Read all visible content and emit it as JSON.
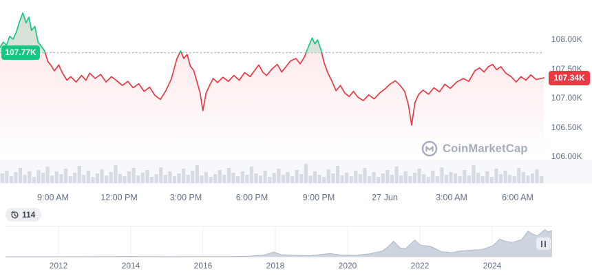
{
  "watermark": {
    "text": "CoinMarketCap"
  },
  "badges": {
    "open_label": "107.77K",
    "current_label": "107.34K"
  },
  "history_pill": {
    "count": "114"
  },
  "colors": {
    "green": "#16c784",
    "red": "#ea3943",
    "axis_text": "#616e85",
    "badge_open_bg": "#16c784",
    "badge_current_bg": "#ea3943",
    "volume_bar": "#d6dae2",
    "minimap_fill": "#ced4df",
    "minimap_edge": "#aeb6c4",
    "baseline_dotted": "#a9b0bd",
    "watermark": "#a5acbe",
    "green_fill_opacity": 0.16,
    "pink_fill_opacity": 0.14
  },
  "chart_data": [
    {
      "id": "price-24h",
      "type": "line",
      "unit": "thousand USD",
      "baseline_price": 107.77,
      "baseline_label": "107.77K",
      "last_price": 107.34,
      "last_label": "107.34K",
      "ylim": [
        105.95,
        108.6
      ],
      "grid": "baseline-dotted-only",
      "legend": "none",
      "y_ticks": [
        {
          "label": "108.00K",
          "value": 108.0
        },
        {
          "label": "107.50K",
          "value": 107.5
        },
        {
          "label": "107.00K",
          "value": 107.0
        },
        {
          "label": "106.50K",
          "value": 106.5
        },
        {
          "label": "106.00K",
          "value": 106.0
        }
      ],
      "x_ticks": [
        {
          "label": "9:00 AM",
          "t": 0.0975
        },
        {
          "label": "12:00 PM",
          "t": 0.2196
        },
        {
          "label": "3:00 PM",
          "t": 0.3418
        },
        {
          "label": "6:00 PM",
          "t": 0.4639
        },
        {
          "label": "9:00 PM",
          "t": 0.5861
        },
        {
          "label": "27 Jun",
          "t": 0.7082
        },
        {
          "label": "3:00 AM",
          "t": 0.8304
        },
        {
          "label": "6:00 AM",
          "t": 0.9525
        }
      ],
      "series": [
        {
          "name": "price",
          "points": [
            [
              0.0,
              107.86
            ],
            [
              0.006,
              107.95
            ],
            [
              0.012,
              107.9
            ],
            [
              0.018,
              108.05
            ],
            [
              0.024,
              108.0
            ],
            [
              0.03,
              108.12
            ],
            [
              0.036,
              108.3
            ],
            [
              0.042,
              108.45
            ],
            [
              0.048,
              108.28
            ],
            [
              0.053,
              108.38
            ],
            [
              0.058,
              108.15
            ],
            [
              0.064,
              108.22
            ],
            [
              0.07,
              107.95
            ],
            [
              0.076,
              107.88
            ],
            [
              0.082,
              107.8
            ],
            [
              0.088,
              107.62
            ],
            [
              0.094,
              107.55
            ],
            [
              0.1,
              107.46
            ],
            [
              0.108,
              107.56
            ],
            [
              0.115,
              107.42
            ],
            [
              0.123,
              107.3
            ],
            [
              0.13,
              107.36
            ],
            [
              0.14,
              107.27
            ],
            [
              0.15,
              107.38
            ],
            [
              0.158,
              107.3
            ],
            [
              0.165,
              107.42
            ],
            [
              0.175,
              107.33
            ],
            [
              0.185,
              107.4
            ],
            [
              0.195,
              107.27
            ],
            [
              0.205,
              107.36
            ],
            [
              0.215,
              107.29
            ],
            [
              0.225,
              107.21
            ],
            [
              0.235,
              107.28
            ],
            [
              0.245,
              107.17
            ],
            [
              0.255,
              107.24
            ],
            [
              0.265,
              107.11
            ],
            [
              0.275,
              107.18
            ],
            [
              0.285,
              107.04
            ],
            [
              0.295,
              106.97
            ],
            [
              0.305,
              107.12
            ],
            [
              0.315,
              107.32
            ],
            [
              0.325,
              107.66
            ],
            [
              0.332,
              107.8
            ],
            [
              0.338,
              107.67
            ],
            [
              0.344,
              107.74
            ],
            [
              0.35,
              107.54
            ],
            [
              0.356,
              107.47
            ],
            [
              0.362,
              107.28
            ],
            [
              0.368,
              107.08
            ],
            [
              0.373,
              106.78
            ],
            [
              0.379,
              107.08
            ],
            [
              0.386,
              107.22
            ],
            [
              0.392,
              107.33
            ],
            [
              0.4,
              107.26
            ],
            [
              0.41,
              107.35
            ],
            [
              0.42,
              107.28
            ],
            [
              0.43,
              107.38
            ],
            [
              0.44,
              107.3
            ],
            [
              0.45,
              107.43
            ],
            [
              0.46,
              107.36
            ],
            [
              0.47,
              107.49
            ],
            [
              0.476,
              107.56
            ],
            [
              0.483,
              107.44
            ],
            [
              0.49,
              107.38
            ],
            [
              0.5,
              107.49
            ],
            [
              0.51,
              107.57
            ],
            [
              0.518,
              107.44
            ],
            [
              0.526,
              107.53
            ],
            [
              0.534,
              107.63
            ],
            [
              0.544,
              107.67
            ],
            [
              0.552,
              107.58
            ],
            [
              0.56,
              107.7
            ],
            [
              0.568,
              107.89
            ],
            [
              0.574,
              108.02
            ],
            [
              0.579,
              107.92
            ],
            [
              0.584,
              107.99
            ],
            [
              0.59,
              107.83
            ],
            [
              0.596,
              107.6
            ],
            [
              0.603,
              107.42
            ],
            [
              0.61,
              107.29
            ],
            [
              0.618,
              107.12
            ],
            [
              0.626,
              107.21
            ],
            [
              0.634,
              107.08
            ],
            [
              0.642,
              107.02
            ],
            [
              0.65,
              107.11
            ],
            [
              0.658,
              107.01
            ],
            [
              0.668,
              106.95
            ],
            [
              0.678,
              107.05
            ],
            [
              0.688,
              106.98
            ],
            [
              0.698,
              107.08
            ],
            [
              0.708,
              107.15
            ],
            [
              0.717,
              107.23
            ],
            [
              0.727,
              107.29
            ],
            [
              0.736,
              107.21
            ],
            [
              0.744,
              107.11
            ],
            [
              0.751,
              106.88
            ],
            [
              0.757,
              106.53
            ],
            [
              0.763,
              106.92
            ],
            [
              0.77,
              107.06
            ],
            [
              0.778,
              107.13
            ],
            [
              0.788,
              107.06
            ],
            [
              0.798,
              107.17
            ],
            [
              0.808,
              107.1
            ],
            [
              0.818,
              107.23
            ],
            [
              0.828,
              107.16
            ],
            [
              0.84,
              107.27
            ],
            [
              0.852,
              107.33
            ],
            [
              0.862,
              107.28
            ],
            [
              0.873,
              107.46
            ],
            [
              0.882,
              107.51
            ],
            [
              0.89,
              107.44
            ],
            [
              0.898,
              107.53
            ],
            [
              0.906,
              107.57
            ],
            [
              0.913,
              107.48
            ],
            [
              0.921,
              107.53
            ],
            [
              0.93,
              107.42
            ],
            [
              0.94,
              107.36
            ],
            [
              0.949,
              107.27
            ],
            [
              0.958,
              107.36
            ],
            [
              0.967,
              107.3
            ],
            [
              0.976,
              107.39
            ],
            [
              0.986,
              107.31
            ],
            [
              1.0,
              107.34
            ]
          ]
        }
      ],
      "volume": [
        14,
        18,
        10,
        16,
        22,
        12,
        17,
        9,
        19,
        15,
        24,
        11,
        17,
        13,
        21,
        10,
        15,
        25,
        12,
        18,
        9,
        14,
        20,
        11,
        16,
        26,
        13,
        10,
        17,
        22,
        11,
        15,
        19,
        9,
        13,
        23,
        12,
        17,
        10,
        14,
        21,
        12,
        18,
        26,
        11,
        16,
        9,
        13,
        19,
        12,
        22,
        15,
        10,
        17,
        12,
        24,
        14,
        11,
        18,
        9,
        15,
        21,
        12,
        16,
        10,
        19,
        13,
        28,
        11,
        17,
        12,
        9,
        20,
        14,
        25,
        11,
        15,
        10,
        18,
        13,
        22,
        10,
        16,
        9,
        14,
        19,
        12,
        24,
        11,
        17,
        10,
        15,
        21,
        13,
        9,
        18,
        10,
        23,
        12,
        16,
        14,
        10,
        19,
        11,
        26,
        15,
        10,
        17,
        9,
        21,
        13,
        18,
        12,
        10,
        22,
        16,
        11,
        14,
        20,
        10
      ]
    },
    {
      "id": "history-minimap",
      "type": "area",
      "unit": "thousand USD",
      "ylim": [
        0,
        115
      ],
      "x_ticks": [
        {
          "label": "2012",
          "t": 0.097
        },
        {
          "label": "2014",
          "t": 0.229
        },
        {
          "label": "2016",
          "t": 0.361
        },
        {
          "label": "2018",
          "t": 0.494
        },
        {
          "label": "2020",
          "t": 0.626
        },
        {
          "label": "2022",
          "t": 0.758
        },
        {
          "label": "2024",
          "t": 0.89
        }
      ],
      "points": [
        [
          0.0,
          0.02
        ],
        [
          0.031,
          0.05
        ],
        [
          0.097,
          0.1
        ],
        [
          0.163,
          0.15
        ],
        [
          0.226,
          1.0
        ],
        [
          0.249,
          0.5
        ],
        [
          0.296,
          0.3
        ],
        [
          0.362,
          0.45
        ],
        [
          0.415,
          0.9
        ],
        [
          0.448,
          2.5
        ],
        [
          0.474,
          7
        ],
        [
          0.491,
          19
        ],
        [
          0.504,
          8.5
        ],
        [
          0.527,
          6.5
        ],
        [
          0.557,
          3.8
        ],
        [
          0.593,
          13
        ],
        [
          0.613,
          7.3
        ],
        [
          0.64,
          6
        ],
        [
          0.666,
          11.5
        ],
        [
          0.689,
          23
        ],
        [
          0.7,
          40
        ],
        [
          0.71,
          63
        ],
        [
          0.722,
          36
        ],
        [
          0.732,
          33
        ],
        [
          0.749,
          68
        ],
        [
          0.759,
          47
        ],
        [
          0.778,
          42
        ],
        [
          0.798,
          20
        ],
        [
          0.818,
          16.5
        ],
        [
          0.831,
          23
        ],
        [
          0.851,
          27
        ],
        [
          0.871,
          29
        ],
        [
          0.891,
          44
        ],
        [
          0.904,
          72
        ],
        [
          0.914,
          63
        ],
        [
          0.927,
          58
        ],
        [
          0.944,
          69
        ],
        [
          0.956,
          104
        ],
        [
          0.964,
          93
        ],
        [
          0.973,
          85
        ],
        [
          0.987,
          110
        ],
        [
          0.993,
          101
        ],
        [
          1.0,
          107
        ]
      ]
    }
  ]
}
